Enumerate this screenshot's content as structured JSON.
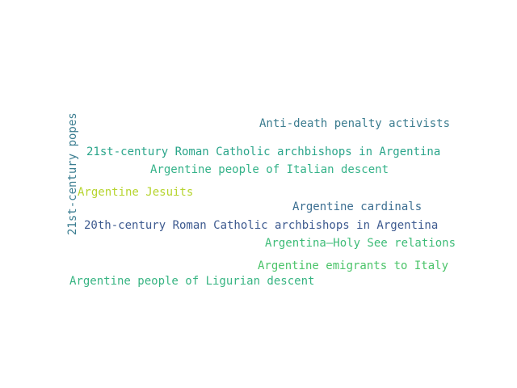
{
  "words": [
    {
      "text": "Anti-death penalty activists",
      "color": "#3b7c8f"
    },
    {
      "text": "21st-century Roman Catholic archbishops in Argentina",
      "color": "#2aa58a"
    },
    {
      "text": "Argentine people of Italian descent",
      "color": "#33b288"
    },
    {
      "text": "Argentine Jesuits",
      "color": "#b6d42e"
    },
    {
      "text": "Argentine cardinals",
      "color": "#3d6f92"
    },
    {
      "text": "20th-century Roman Catholic archbishops in Argentina",
      "color": "#3d5a8f"
    },
    {
      "text": "Argentina–Holy See relations",
      "color": "#3ebc78"
    },
    {
      "text": "Argentine emigrants to Italy",
      "color": "#4cc46a"
    },
    {
      "text": "Argentine people of Ligurian descent",
      "color": "#37b482"
    },
    {
      "text": "21st-century popes",
      "color": "#3c7e91"
    }
  ]
}
